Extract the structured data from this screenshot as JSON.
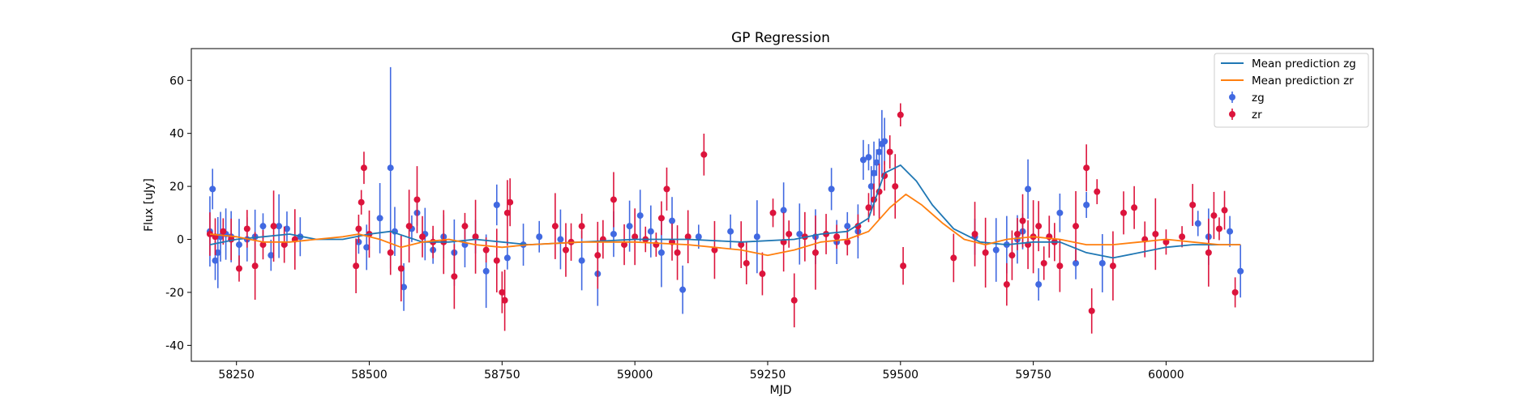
{
  "chart_data": {
    "type": "scatter",
    "title": "GP Regression",
    "xlabel": "MJD",
    "ylabel": "Flux [uJy]",
    "xlim": [
      58165,
      60390
    ],
    "ylim": [
      -46,
      72
    ],
    "xticks": [
      58250,
      58500,
      58750,
      59000,
      59250,
      59500,
      59750,
      60000
    ],
    "yticks": [
      -40,
      -20,
      0,
      20,
      40,
      60
    ],
    "grid": false,
    "legend_position": "top-right",
    "legend": [
      {
        "label": "Mean prediction zg",
        "kind": "line",
        "color": "#1f77b4"
      },
      {
        "label": "Mean prediction zr",
        "kind": "line",
        "color": "#ff7f0e"
      },
      {
        "label": "zg",
        "kind": "errorbar",
        "color": "#4169e1"
      },
      {
        "label": "zr",
        "kind": "errorbar",
        "color": "#dc143c"
      }
    ],
    "series": [
      {
        "name": "Mean prediction zg",
        "kind": "line",
        "color": "#1f77b4",
        "x": [
          58200,
          58250,
          58300,
          58350,
          58400,
          58450,
          58500,
          58540,
          58600,
          58650,
          58700,
          58750,
          58800,
          58900,
          59000,
          59100,
          59200,
          59300,
          59350,
          59400,
          59440,
          59470,
          59500,
          59530,
          59560,
          59600,
          59650,
          59700,
          59750,
          59800,
          59850,
          59900,
          59950,
          60000,
          60050,
          60100,
          60140
        ],
        "y": [
          -2,
          0,
          1,
          2,
          0,
          0,
          2,
          3,
          -1,
          -1,
          0,
          -1,
          -2,
          -1,
          0,
          0,
          -1,
          0,
          2,
          3,
          8,
          25,
          28,
          22,
          13,
          4,
          -1,
          -2,
          -1,
          -1,
          -5,
          -7,
          -5,
          -3,
          -2,
          -2,
          -2
        ]
      },
      {
        "name": "Mean prediction zr",
        "kind": "line",
        "color": "#ff7f0e",
        "x": [
          58200,
          58250,
          58300,
          58350,
          58400,
          58450,
          58480,
          58520,
          58560,
          58600,
          58650,
          58700,
          58750,
          58800,
          58900,
          59000,
          59100,
          59200,
          59250,
          59300,
          59350,
          59400,
          59440,
          59480,
          59510,
          59540,
          59580,
          59620,
          59660,
          59700,
          59750,
          59800,
          59850,
          59900,
          59950,
          60000,
          60050,
          60100,
          60140
        ],
        "y": [
          2,
          1,
          -1,
          -1,
          0,
          1,
          2,
          0,
          -3,
          -1,
          0,
          -2,
          -3,
          -2,
          -1,
          -1,
          -2,
          -4,
          -6,
          -4,
          -1,
          0,
          3,
          12,
          17,
          13,
          6,
          0,
          -2,
          0,
          1,
          0,
          -2,
          -2,
          -1,
          0,
          -1,
          -2,
          -2
        ]
      },
      {
        "name": "zg",
        "kind": "errorbar",
        "color": "#4169e1",
        "x": [
          58200,
          58205,
          58210,
          58215,
          58220,
          58230,
          58240,
          58255,
          58270,
          58285,
          58300,
          58315,
          58330,
          58345,
          58370,
          58480,
          58495,
          58520,
          58540,
          58548,
          58565,
          58580,
          58590,
          58605,
          58620,
          58640,
          58660,
          58680,
          58700,
          58720,
          58740,
          58760,
          58790,
          58820,
          58860,
          58900,
          58930,
          58960,
          58990,
          59010,
          59030,
          59050,
          59070,
          59090,
          59120,
          59180,
          59230,
          59280,
          59310,
          59340,
          59370,
          59380,
          59400,
          59420,
          59430,
          59440,
          59445,
          59450,
          59455,
          59460,
          59465,
          59470,
          59640,
          59680,
          59700,
          59720,
          59730,
          59740,
          59760,
          59780,
          59800,
          59830,
          59850,
          59880,
          60060,
          60080,
          60120,
          60140
        ],
        "y": [
          3,
          19,
          -8,
          -5,
          1,
          2,
          1,
          -2,
          0,
          1,
          5,
          -6,
          5,
          4,
          1,
          -1,
          -3,
          8,
          27,
          3,
          -18,
          4,
          10,
          2,
          -4,
          1,
          -5,
          -2,
          1,
          -12,
          13,
          -7,
          -2,
          1,
          0,
          -8,
          -13,
          2,
          5,
          9,
          3,
          -5,
          7,
          -19,
          1,
          3,
          1,
          11,
          2,
          1,
          19,
          -1,
          5,
          3,
          30,
          31,
          20,
          25,
          29,
          33,
          36,
          37,
          1,
          -4,
          -2,
          0,
          3,
          19,
          -17,
          1,
          10,
          -9,
          13,
          -9,
          6,
          1,
          3,
          -12
        ]
      },
      {
        "name": "zr",
        "kind": "errorbar",
        "color": "#dc143c",
        "x": [
          58200,
          58210,
          58225,
          58240,
          58255,
          58270,
          58285,
          58300,
          58320,
          58340,
          58360,
          58475,
          58480,
          58485,
          58490,
          58500,
          58540,
          58560,
          58575,
          58590,
          58600,
          58620,
          58640,
          58660,
          58680,
          58700,
          58720,
          58740,
          58750,
          58755,
          58760,
          58765,
          58850,
          58870,
          58880,
          58900,
          58930,
          58940,
          58960,
          58980,
          59000,
          59020,
          59040,
          59050,
          59060,
          59070,
          59080,
          59100,
          59130,
          59150,
          59200,
          59210,
          59240,
          59260,
          59280,
          59290,
          59300,
          59320,
          59340,
          59360,
          59380,
          59400,
          59420,
          59440,
          59450,
          59460,
          59470,
          59480,
          59490,
          59500,
          59505,
          59600,
          59640,
          59660,
          59700,
          59710,
          59720,
          59730,
          59740,
          59750,
          59760,
          59770,
          59780,
          59790,
          59800,
          59830,
          59850,
          59860,
          59870,
          59900,
          59920,
          59940,
          59960,
          59980,
          60000,
          60030,
          60050,
          60080,
          60090,
          60100,
          60110,
          60130
        ],
        "y": [
          2,
          1,
          3,
          0,
          -11,
          4,
          -10,
          -2,
          5,
          -2,
          0,
          -10,
          4,
          14,
          27,
          2,
          -5,
          -11,
          5,
          15,
          1,
          -1,
          -1,
          -14,
          5,
          1,
          -4,
          -8,
          -20,
          -23,
          10,
          14,
          5,
          -4,
          -1,
          5,
          -6,
          0,
          15,
          -2,
          1,
          0,
          -2,
          8,
          19,
          -1,
          -5,
          1,
          32,
          -4,
          -2,
          -9,
          -13,
          10,
          -1,
          2,
          -23,
          1,
          -5,
          2,
          1,
          -1,
          5,
          12,
          15,
          18,
          24,
          33,
          20,
          47,
          -10,
          -7,
          2,
          -5,
          -17,
          -6,
          2,
          7,
          -2,
          1,
          5,
          -9,
          1,
          -1,
          -10,
          5,
          27,
          -27,
          18,
          -10,
          10,
          12,
          0,
          2,
          -1,
          1,
          13,
          -5,
          9,
          4,
          11,
          -20
        ]
      }
    ]
  }
}
